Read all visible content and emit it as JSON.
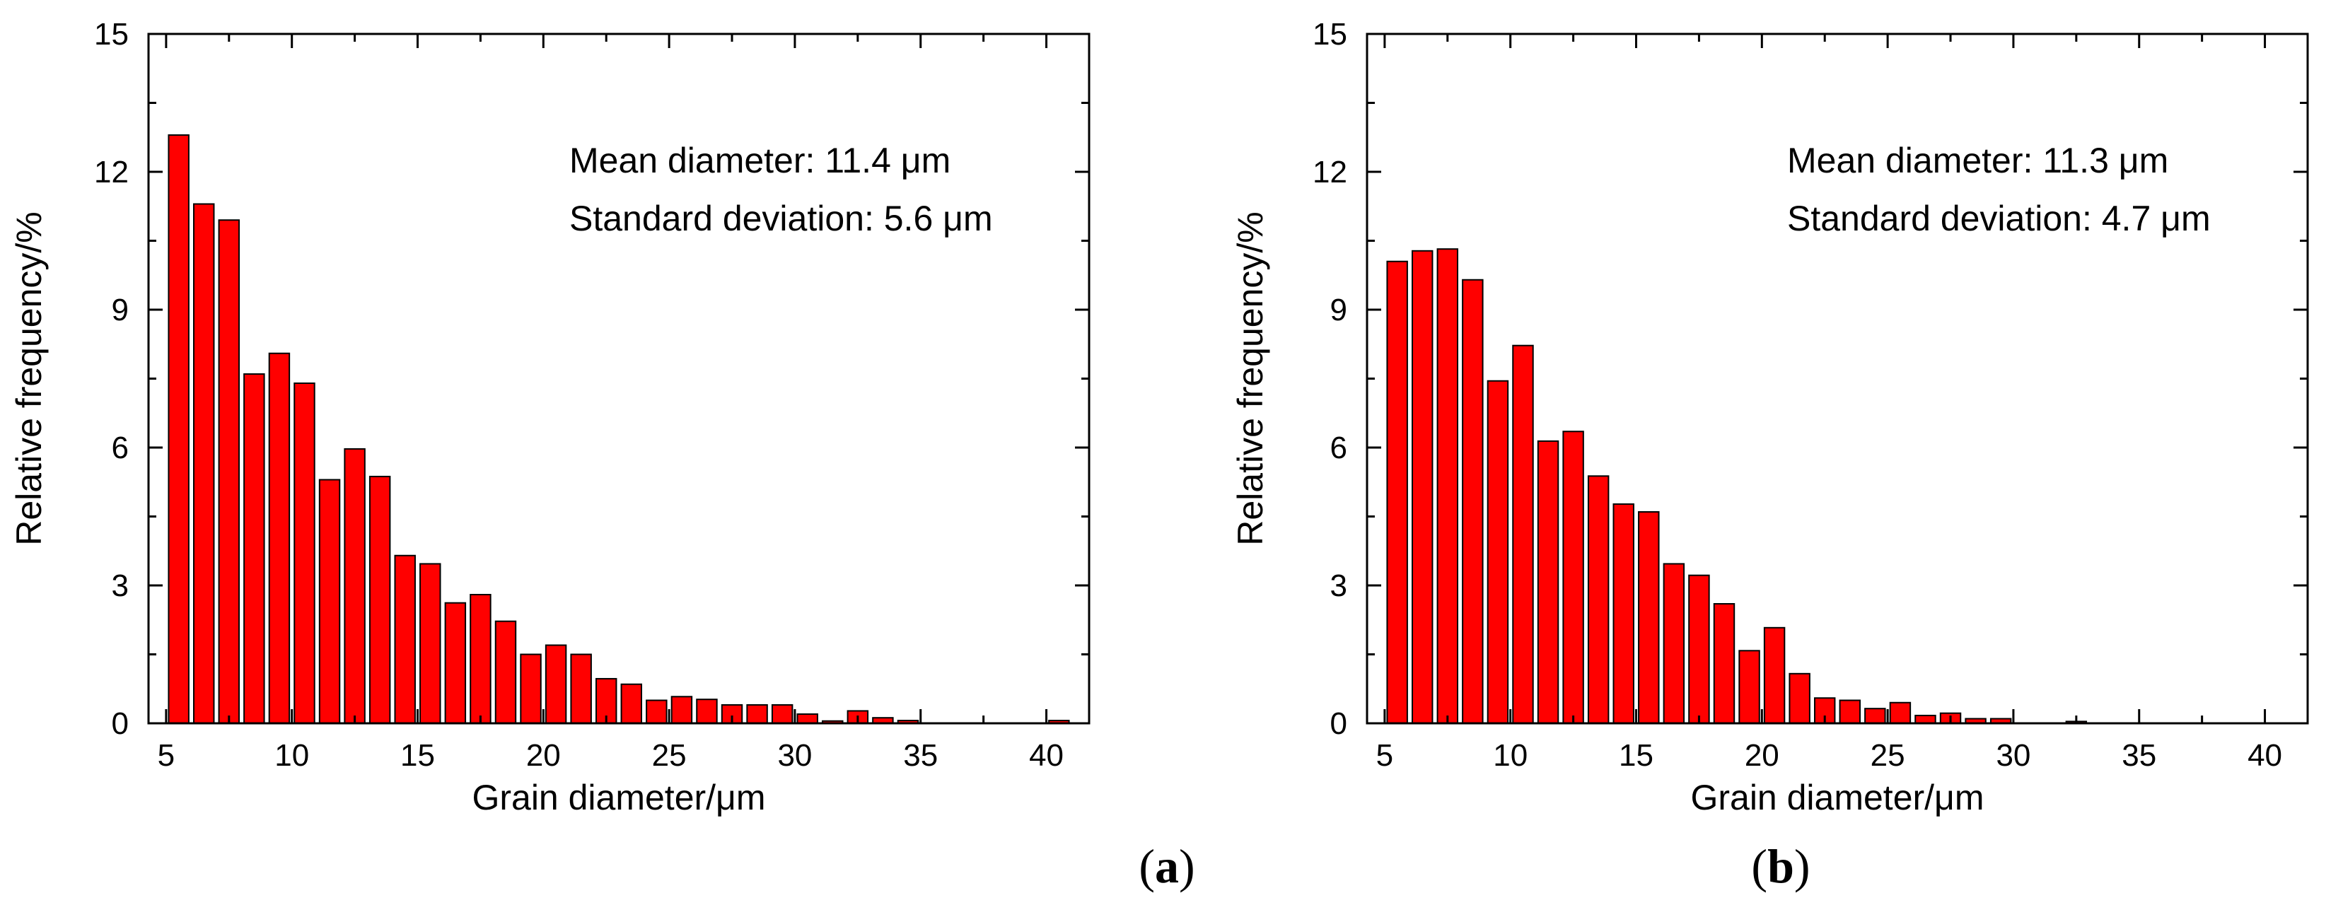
{
  "colors": {
    "bar_fill": "#ff0000",
    "bar_edge": "#000000",
    "axis": "#000000"
  },
  "chart_data": [
    {
      "type": "bar",
      "panel_label": "a",
      "xlabel": "Grain diameter/μm",
      "ylabel": "Relative frequency/%",
      "xlim": [
        4.3,
        41.7
      ],
      "ylim": [
        0,
        15
      ],
      "xticks": [
        5,
        10,
        15,
        20,
        25,
        30,
        35,
        40
      ],
      "yticks": [
        0,
        3,
        6,
        9,
        12,
        15
      ],
      "bin_width": 1,
      "annotations": [
        "Mean diameter: 11.4 μm",
        "Standard deviation: 5.6 μm"
      ],
      "x": [
        5.5,
        6.5,
        7.5,
        8.5,
        9.5,
        10.5,
        11.5,
        12.5,
        13.5,
        14.5,
        15.5,
        16.5,
        17.5,
        18.5,
        19.5,
        20.5,
        21.5,
        22.5,
        23.5,
        24.5,
        25.5,
        26.5,
        27.5,
        28.5,
        29.5,
        30.5,
        31.5,
        32.5,
        33.5,
        34.5,
        40.5
      ],
      "values": [
        12.8,
        11.3,
        10.95,
        7.6,
        8.05,
        7.4,
        5.3,
        5.97,
        5.37,
        3.65,
        3.47,
        2.62,
        2.8,
        2.22,
        1.5,
        1.7,
        1.5,
        0.97,
        0.85,
        0.5,
        0.58,
        0.52,
        0.4,
        0.4,
        0.4,
        0.2,
        0.05,
        0.27,
        0.12,
        0.06,
        0.06
      ]
    },
    {
      "type": "bar",
      "panel_label": "b",
      "xlabel": "Grain diameter/μm",
      "ylabel": "Relative frequency/%",
      "xlim": [
        4.3,
        41.7
      ],
      "ylim": [
        0,
        15
      ],
      "xticks": [
        5,
        10,
        15,
        20,
        25,
        30,
        35,
        40
      ],
      "yticks": [
        0,
        3,
        6,
        9,
        12,
        15
      ],
      "bin_width": 1,
      "annotations": [
        "Mean diameter: 11.3 μm",
        "Standard deviation: 4.7 μm"
      ],
      "x": [
        5.5,
        6.5,
        7.5,
        8.5,
        9.5,
        10.5,
        11.5,
        12.5,
        13.5,
        14.5,
        15.5,
        16.5,
        17.5,
        18.5,
        19.5,
        20.5,
        21.5,
        22.5,
        23.5,
        24.5,
        25.5,
        26.5,
        27.5,
        28.5,
        29.5,
        32.5
      ],
      "values": [
        10.05,
        10.28,
        10.32,
        9.65,
        7.45,
        8.22,
        6.14,
        6.35,
        5.38,
        4.77,
        4.6,
        3.47,
        3.22,
        2.6,
        1.58,
        2.08,
        1.08,
        0.55,
        0.5,
        0.32,
        0.45,
        0.17,
        0.22,
        0.1,
        0.1,
        0.04
      ]
    }
  ]
}
